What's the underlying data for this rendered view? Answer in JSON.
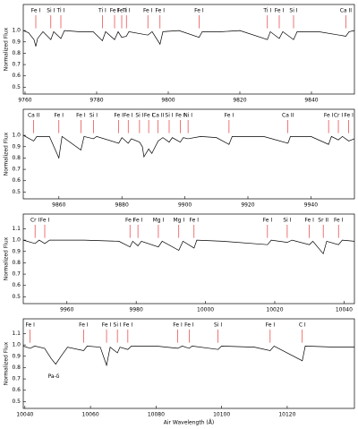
{
  "chart_data": [
    {
      "type": "line",
      "ylabel": "Normalized Flux",
      "xlim": [
        9759.5,
        9852
      ],
      "xticks": [
        9760,
        9780,
        9800,
        9820,
        9840
      ],
      "ylim": [
        0.44,
        1.23
      ],
      "yticks": [
        0.5,
        0.6,
        0.7,
        0.8,
        0.9,
        {
          "value": 1,
          "label": "1.0"
        }
      ],
      "x": [
        9759.5,
        9761,
        9762.5,
        9763,
        9763.5,
        9765,
        9767.2,
        9768,
        9770,
        9771,
        9775,
        9779,
        9781.6,
        9782.5,
        9785,
        9786,
        9787,
        9788.3,
        9789,
        9794.3,
        9795.5,
        9797.7,
        9798.5,
        9803,
        9808.6,
        9809.5,
        9815,
        9820,
        9827.7,
        9828.5,
        9831,
        9832,
        9835,
        9836,
        9842,
        9849.6,
        9850.5,
        9852
      ],
      "series": [
        {
          "color": "#000000",
          "values": [
            1.0,
            0.98,
            0.92,
            0.86,
            0.93,
            0.99,
            0.92,
            0.99,
            0.93,
            1.0,
            0.99,
            0.99,
            0.91,
            0.99,
            0.92,
            0.99,
            0.94,
            0.95,
            0.99,
            0.96,
            0.99,
            0.88,
            0.99,
            1.0,
            0.94,
            0.99,
            0.99,
            1.0,
            0.92,
            0.99,
            0.93,
            0.99,
            0.92,
            0.99,
            0.99,
            0.95,
            0.99,
            1.0
          ]
        }
      ],
      "line_color": "#e41a1c",
      "lines": [
        {
          "label": "Fe I",
          "x": 9763
        },
        {
          "label": "Si I",
          "x": 9767.2
        },
        {
          "label": "Ti I",
          "x": 9770
        },
        {
          "label": "Ti I",
          "x": 9781.6
        },
        {
          "label": "Fe I",
          "x": 9785
        },
        {
          "label": "Fe I",
          "x": 9787
        },
        {
          "label": "Ti I",
          "x": 9788.3
        },
        {
          "label": "Fe I",
          "x": 9794.3
        },
        {
          "label": "Fe I",
          "x": 9797.7
        },
        {
          "label": "Fe I",
          "x": 9808.6
        },
        {
          "label": "Ti I",
          "x": 9827.7
        },
        {
          "label": "Fe I",
          "x": 9831
        },
        {
          "label": "Si I",
          "x": 9835
        },
        {
          "label": "Ca II",
          "x": 9849.6
        }
      ]
    },
    {
      "type": "line",
      "ylabel": "Normalized Flux",
      "xlim": [
        9848.7,
        9953.8
      ],
      "xticks": [
        9860,
        9880,
        9900,
        9920,
        9940
      ],
      "ylim": [
        0.44,
        1.23
      ],
      "yticks": [
        0.5,
        0.6,
        0.7,
        0.8,
        0.9,
        {
          "value": 1,
          "label": "1.0"
        }
      ],
      "x": [
        9848.7,
        9852,
        9853,
        9857,
        9860,
        9861,
        9867,
        9868,
        9871,
        9872,
        9879,
        9880,
        9882,
        9883,
        9885.6,
        9886.5,
        9887,
        9888.5,
        9889.5,
        9891.5,
        9893,
        9895,
        9896,
        9898.5,
        9899.5,
        9901,
        9905,
        9910,
        9914,
        9915,
        9925,
        9932.7,
        9933.5,
        9940,
        9945.6,
        9946.5,
        9948.7,
        9950,
        9952,
        9953.8
      ],
      "series": [
        {
          "color": "#000000",
          "values": [
            1.0,
            0.95,
            0.99,
            0.99,
            0.8,
            0.99,
            0.87,
            0.99,
            0.97,
            0.99,
            0.93,
            0.98,
            0.93,
            0.97,
            0.94,
            0.9,
            0.81,
            0.88,
            0.84,
            0.95,
            0.98,
            0.94,
            0.98,
            0.94,
            0.98,
            0.97,
            0.99,
            0.98,
            0.92,
            0.99,
            0.99,
            0.93,
            0.99,
            0.99,
            0.92,
            0.99,
            0.96,
            0.99,
            0.95,
            0.97
          ]
        }
      ],
      "line_color": "#e41a1c",
      "lines": [
        {
          "label": "Ca II",
          "x": 9852
        },
        {
          "label": "Fe I",
          "x": 9860
        },
        {
          "label": "Fe I",
          "x": 9867
        },
        {
          "label": "Si I",
          "x": 9871
        },
        {
          "label": "Fe I",
          "x": 9879
        },
        {
          "label": "Fe I",
          "x": 9882
        },
        {
          "label": "Si I",
          "x": 9885.6
        },
        {
          "label": "Fe I",
          "x": 9888.5
        },
        {
          "label": "Ca II",
          "x": 9891.5
        },
        {
          "label": "Si I",
          "x": 9895
        },
        {
          "label": "Fe I",
          "x": 9898.5
        },
        {
          "label": "Ni I",
          "x": 9901
        },
        {
          "label": "Fe I",
          "x": 9914
        },
        {
          "label": "Ca II",
          "x": 9932.7
        },
        {
          "label": "Fe I",
          "x": 9945.6
        },
        {
          "label": "Cr I",
          "x": 9948.7
        },
        {
          "label": "Fe I",
          "x": 9952
        }
      ]
    },
    {
      "type": "line",
      "ylabel": "Normalized Flux",
      "xlim": [
        9947.4,
        10043
      ],
      "xticks": [
        9960,
        9980,
        10000,
        10020,
        10040
      ],
      "ylim": [
        0.44,
        1.23
      ],
      "yticks": [
        0.5,
        0.6,
        0.7,
        0.8,
        0.9,
        {
          "value": 1,
          "label": "1.0"
        },
        1.1
      ],
      "x": [
        9947.4,
        9950.8,
        9952,
        9953.6,
        9955,
        9965,
        9975,
        9978.2,
        9979,
        9980.5,
        9981.5,
        9986.4,
        9987.5,
        9992.3,
        9993.5,
        9996.7,
        9997.5,
        10005,
        10017.9,
        10019,
        10023.6,
        10025,
        10030,
        10031,
        10034,
        10035,
        10038.4,
        10039.5,
        10043
      ],
      "series": [
        {
          "color": "#000000",
          "values": [
            1.0,
            0.97,
            1.0,
            0.97,
            1.0,
            1.0,
            0.99,
            0.94,
            0.99,
            0.95,
            0.99,
            0.94,
            0.99,
            0.91,
            0.99,
            0.93,
            1.0,
            0.99,
            0.96,
            1.0,
            0.98,
            1.0,
            0.96,
            0.99,
            0.88,
            0.99,
            0.96,
            1.0,
            0.99
          ]
        }
      ],
      "line_color": "#e41a1c",
      "lines": [
        {
          "label": "Cr I",
          "x": 9950.8
        },
        {
          "label": "Fe I",
          "x": 9953.6
        },
        {
          "label": "Fe I",
          "x": 9978.2
        },
        {
          "label": "Fe I",
          "x": 9980.5
        },
        {
          "label": "Mg I",
          "x": 9986.4
        },
        {
          "label": "Mg I",
          "x": 9992.3
        },
        {
          "label": "Fe I",
          "x": 9996.7
        },
        {
          "label": "Fe I",
          "x": 10017.9
        },
        {
          "label": "Si I",
          "x": 10023.6
        },
        {
          "label": "Fe I",
          "x": 10030
        },
        {
          "label": "Sr II",
          "x": 10034
        },
        {
          "label": "Fe I",
          "x": 10038.4
        }
      ]
    },
    {
      "type": "line",
      "ylabel": "Normalized Flux",
      "xlabel": "Air Wavelength (Å)",
      "annotation": "Pa-δ",
      "xlim": [
        10039.5,
        10140.5
      ],
      "xticks": [
        10040,
        10060,
        10080,
        10100,
        10120
      ],
      "ylim": [
        0.44,
        1.23
      ],
      "yticks": [
        0.5,
        0.6,
        0.7,
        0.8,
        0.9,
        {
          "value": 1,
          "label": "1.0"
        },
        1.1
      ],
      "x": [
        10039.5,
        10041.6,
        10043,
        10046,
        10048,
        10049.4,
        10051,
        10053,
        10057.9,
        10059,
        10063,
        10064.9,
        10066,
        10068.2,
        10069,
        10071.4,
        10072.5,
        10080,
        10086.6,
        10088,
        10090.1,
        10091,
        10098.9,
        10100,
        10110,
        10114.8,
        10116,
        10124.6,
        10125.5,
        10135,
        10140.5
      ],
      "series": [
        {
          "color": "#000000",
          "values": [
            0.99,
            0.97,
            0.99,
            0.97,
            0.88,
            0.83,
            0.9,
            0.98,
            0.95,
            0.99,
            0.98,
            0.82,
            0.98,
            0.93,
            0.98,
            0.96,
            0.99,
            0.99,
            0.97,
            0.99,
            0.97,
            0.99,
            0.96,
            0.99,
            0.98,
            0.95,
            0.99,
            0.86,
            0.99,
            0.98,
            0.98
          ]
        }
      ],
      "line_color": "#e41a1c",
      "lines": [
        {
          "label": "Fe I",
          "x": 10041.6
        },
        {
          "label": "Fe I",
          "x": 10057.9
        },
        {
          "label": "Fe I",
          "x": 10064.9
        },
        {
          "label": "Si I",
          "x": 10068.2
        },
        {
          "label": "Fe I",
          "x": 10071.4
        },
        {
          "label": "Fe I",
          "x": 10086.6
        },
        {
          "label": "Fe I",
          "x": 10090.1
        },
        {
          "label": "Si I",
          "x": 10098.9
        },
        {
          "label": "Fe I",
          "x": 10114.8
        },
        {
          "label": "C I",
          "x": 10124.6
        }
      ]
    }
  ]
}
